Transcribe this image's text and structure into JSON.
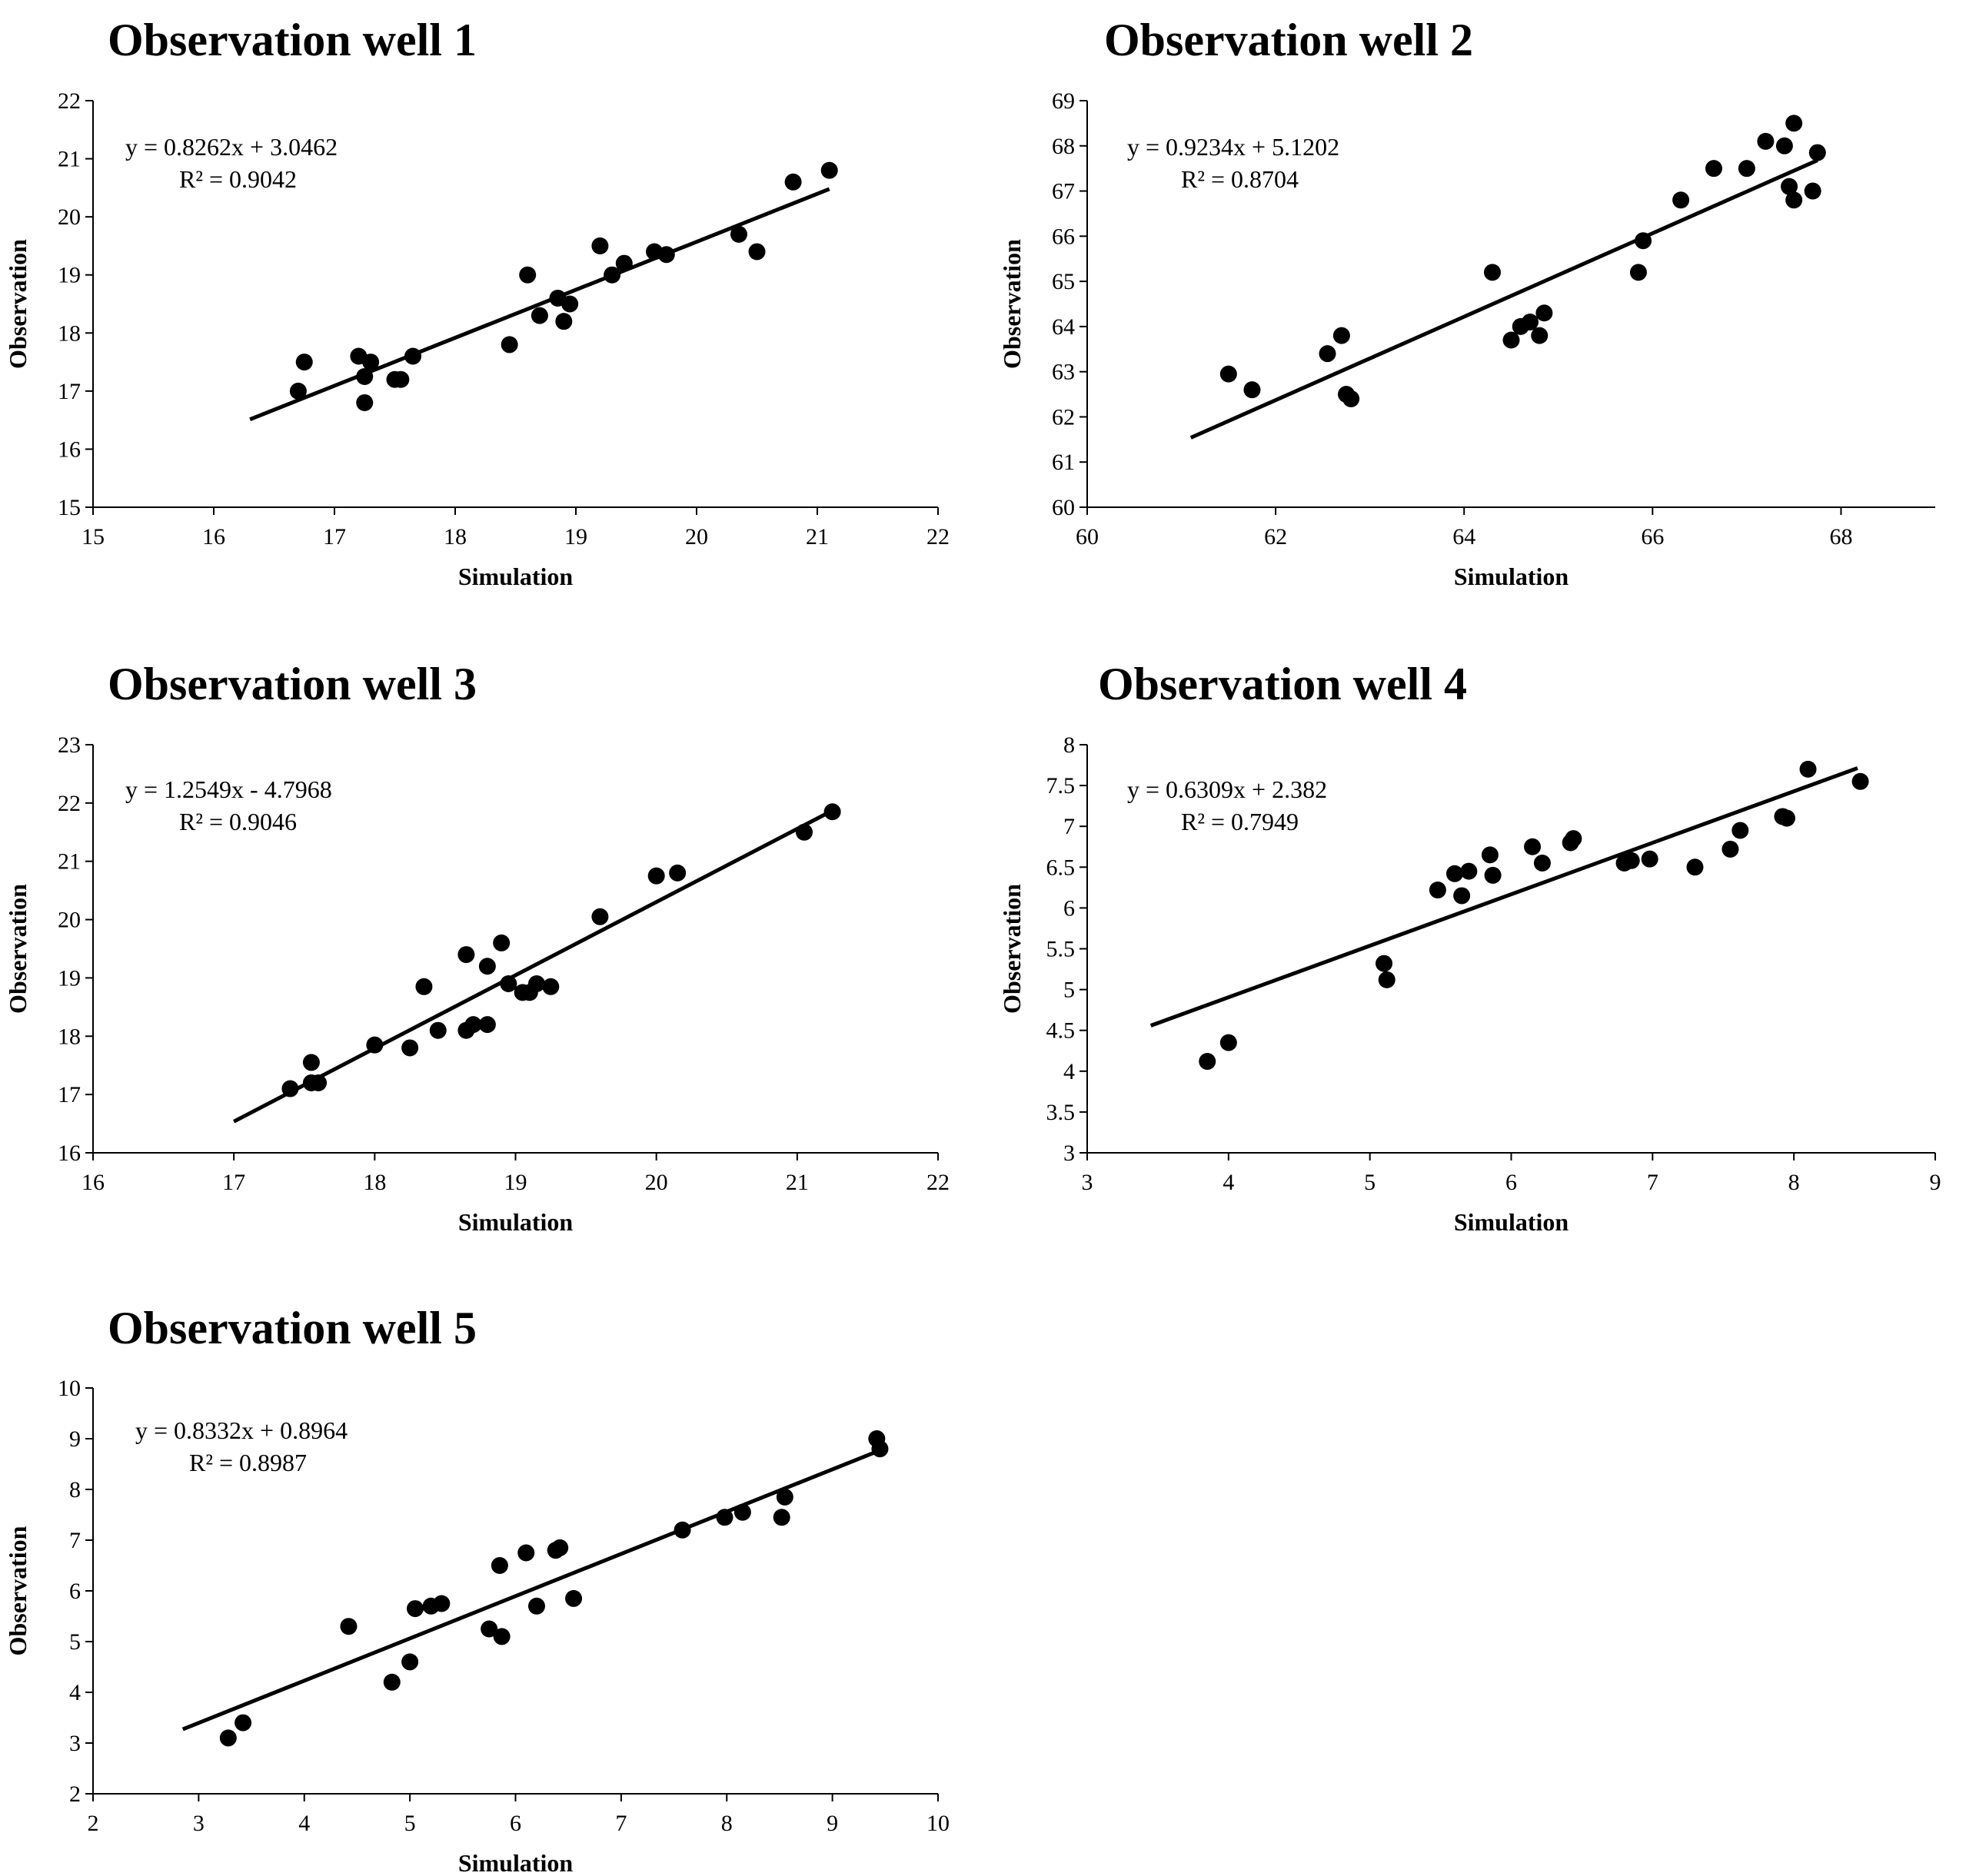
{
  "chart_data": [
    {
      "type": "scatter",
      "title": "Observation well 1",
      "xlabel": "Simulation",
      "ylabel": "Observation",
      "xlim": [
        15,
        22
      ],
      "ylim": [
        15,
        22
      ],
      "xticks": [
        15,
        16,
        17,
        18,
        19,
        20,
        21,
        22
      ],
      "yticks": [
        15,
        16,
        17,
        18,
        19,
        20,
        21,
        22
      ],
      "equation": "y = 0.8262x + 3.0462",
      "r_squared": "R² = 0.9042",
      "trendline": {
        "slope": 0.8262,
        "intercept": 3.0462,
        "x_range": [
          16.3,
          21.1
        ]
      },
      "x": [
        16.7,
        16.75,
        17.2,
        17.25,
        17.25,
        17.3,
        17.5,
        17.55,
        17.65,
        18.45,
        18.6,
        18.7,
        18.85,
        18.9,
        18.95,
        19.2,
        19.3,
        19.4,
        19.65,
        19.75,
        20.35,
        20.5,
        20.8,
        21.1
      ],
      "y": [
        17.0,
        17.5,
        17.6,
        17.25,
        16.8,
        17.5,
        17.2,
        17.2,
        17.6,
        17.8,
        19.0,
        18.3,
        18.6,
        18.2,
        18.5,
        19.5,
        19.0,
        19.2,
        19.4,
        19.35,
        19.7,
        19.4,
        20.6,
        20.8
      ]
    },
    {
      "type": "scatter",
      "title": "Observation well 2",
      "xlabel": "Simulation",
      "ylabel": "Observation",
      "xlim": [
        60,
        69
      ],
      "ylim": [
        60,
        69
      ],
      "xticks": [
        60,
        62,
        64,
        66,
        68
      ],
      "yticks": [
        60,
        61,
        62,
        63,
        64,
        65,
        66,
        67,
        68,
        69
      ],
      "equation": "y = 0.9234x + 5.1202",
      "r_squared": "R² = 0.8704",
      "trendline": {
        "slope": 0.9234,
        "intercept": 5.1202,
        "x_range": [
          61.1,
          67.75
        ]
      },
      "x": [
        61.5,
        61.75,
        62.55,
        62.7,
        62.75,
        62.8,
        64.3,
        64.5,
        64.6,
        64.7,
        64.8,
        64.85,
        65.85,
        65.9,
        66.3,
        66.65,
        67.0,
        67.2,
        67.4,
        67.45,
        67.5,
        67.5,
        67.7,
        67.75
      ],
      "y": [
        62.95,
        62.6,
        63.4,
        63.8,
        62.5,
        62.4,
        65.2,
        63.7,
        64.0,
        64.1,
        63.8,
        64.3,
        65.2,
        65.9,
        66.8,
        67.5,
        67.5,
        68.1,
        68.0,
        67.1,
        68.5,
        66.8,
        67.0,
        67.85
      ]
    },
    {
      "type": "scatter",
      "title": "Observation well 3",
      "xlabel": "Simulation",
      "ylabel": "Observation",
      "xlim": [
        16,
        22
      ],
      "ylim": [
        16,
        23
      ],
      "xticks": [
        16,
        17,
        18,
        19,
        20,
        21,
        22
      ],
      "yticks": [
        16,
        17,
        18,
        19,
        20,
        21,
        22,
        23
      ],
      "equation": "y = 1.2549x - 4.7968",
      "r_squared": "R² = 0.9046",
      "trendline": {
        "slope": 1.2549,
        "intercept": -4.7968,
        "x_range": [
          17.0,
          21.2
        ]
      },
      "x": [
        17.4,
        17.55,
        17.55,
        17.6,
        18.0,
        18.25,
        18.35,
        18.45,
        18.65,
        18.65,
        18.7,
        18.8,
        18.8,
        18.9,
        18.95,
        19.05,
        19.1,
        19.15,
        19.25,
        19.6,
        20.0,
        20.15,
        21.05,
        21.25
      ],
      "y": [
        17.1,
        17.55,
        17.2,
        17.2,
        17.85,
        17.8,
        18.85,
        18.1,
        19.4,
        18.1,
        18.2,
        18.2,
        19.2,
        19.6,
        18.9,
        18.75,
        18.75,
        18.9,
        18.85,
        20.05,
        20.75,
        20.8,
        21.5,
        21.85
      ]
    },
    {
      "type": "scatter",
      "title": "Observation well 4",
      "xlabel": "Simulation",
      "ylabel": "Observation",
      "xlim": [
        3,
        9
      ],
      "ylim": [
        3,
        8
      ],
      "xticks": [
        3,
        4,
        5,
        6,
        7,
        8,
        9
      ],
      "yticks": [
        3,
        3.5,
        4,
        4.5,
        5,
        5.5,
        6,
        6.5,
        7,
        7.5,
        8
      ],
      "equation": "y = 0.6309x + 2.382",
      "r_squared": "R² = 0.7949",
      "trendline": {
        "slope": 0.6309,
        "intercept": 2.382,
        "x_range": [
          3.45,
          8.45
        ]
      },
      "x": [
        3.85,
        4.0,
        5.1,
        5.12,
        5.48,
        5.6,
        5.65,
        5.7,
        5.85,
        5.87,
        6.15,
        6.22,
        6.42,
        6.44,
        6.8,
        6.85,
        6.98,
        7.3,
        7.55,
        7.62,
        7.92,
        7.95,
        8.1,
        8.47
      ],
      "y": [
        4.12,
        4.35,
        5.32,
        5.12,
        6.22,
        6.42,
        6.15,
        6.45,
        6.65,
        6.4,
        6.75,
        6.55,
        6.8,
        6.85,
        6.55,
        6.58,
        6.6,
        6.5,
        6.72,
        6.95,
        7.12,
        7.1,
        7.7,
        7.55
      ]
    },
    {
      "type": "scatter",
      "title": "Observation well 5",
      "xlabel": "Simulation",
      "ylabel": "Observation",
      "xlim": [
        2,
        10
      ],
      "ylim": [
        2,
        10
      ],
      "xticks": [
        2,
        3,
        4,
        5,
        6,
        7,
        8,
        9,
        10
      ],
      "yticks": [
        2,
        3,
        4,
        5,
        6,
        7,
        8,
        9,
        10
      ],
      "equation": "y = 0.8332x + 0.8964",
      "r_squared": "R² = 0.8987",
      "trendline": {
        "slope": 0.8332,
        "intercept": 0.8964,
        "x_range": [
          2.85,
          9.4
        ]
      },
      "x": [
        3.28,
        3.42,
        4.42,
        4.83,
        5.0,
        5.05,
        5.2,
        5.3,
        5.75,
        5.85,
        5.87,
        6.1,
        6.2,
        6.38,
        6.42,
        6.55,
        7.58,
        7.98,
        8.15,
        8.52,
        8.55,
        9.42,
        9.45
      ],
      "y": [
        3.1,
        3.4,
        5.3,
        4.2,
        4.6,
        5.65,
        5.7,
        5.75,
        5.25,
        6.5,
        5.1,
        6.75,
        5.7,
        6.8,
        6.85,
        5.85,
        7.2,
        7.45,
        7.55,
        7.45,
        7.85,
        9.0,
        8.8
      ]
    }
  ]
}
